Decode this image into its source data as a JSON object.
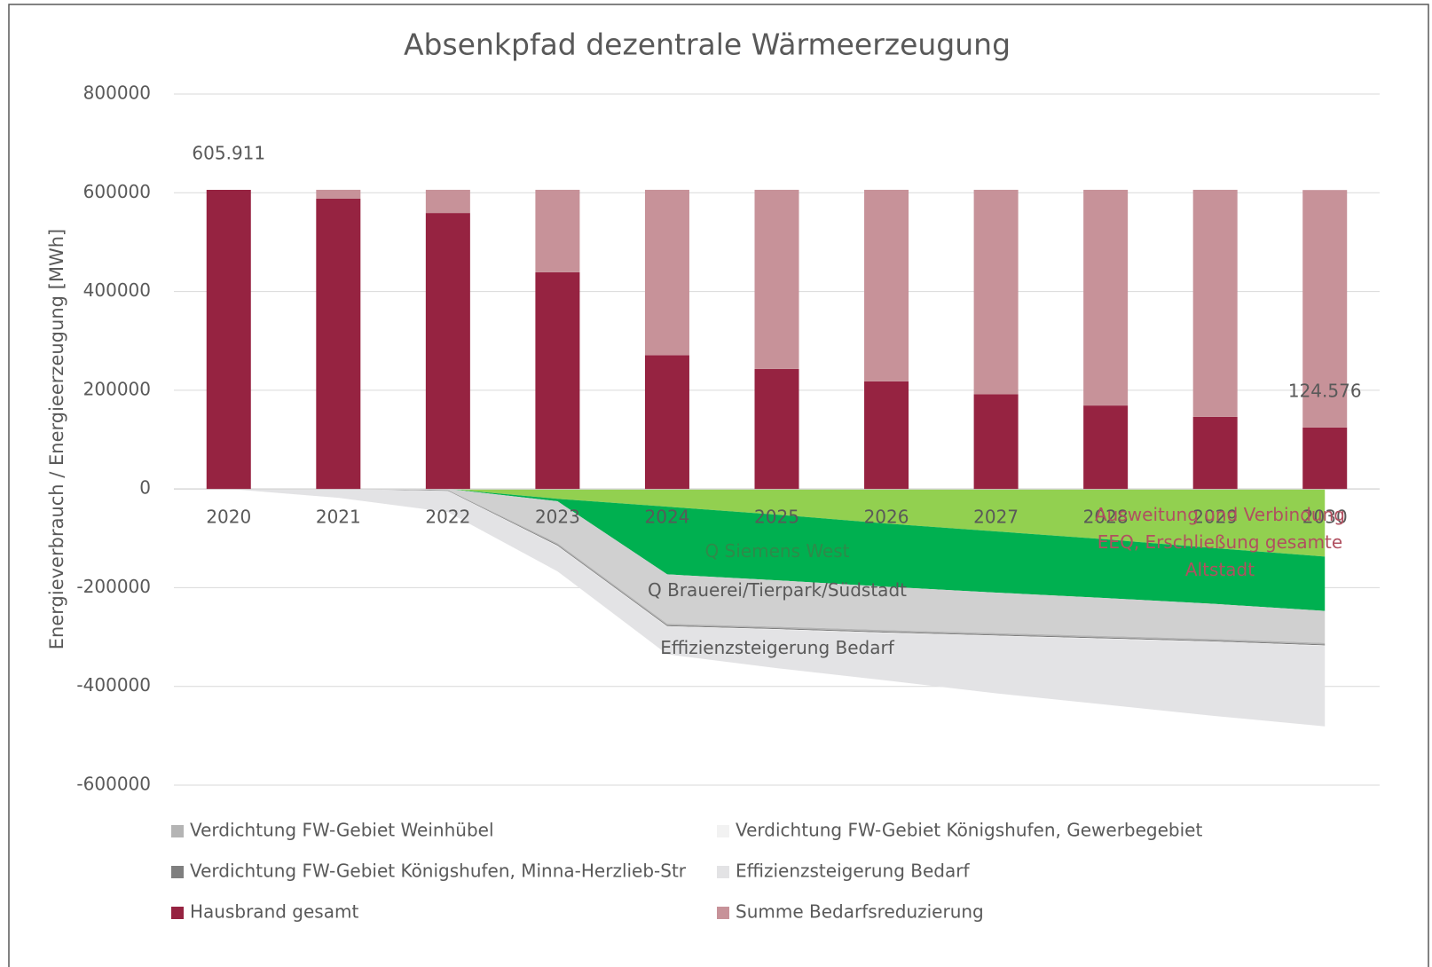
{
  "chart_data": {
    "type": "combo",
    "title": "Absenkpfad dezentrale Wärmeerzeugung",
    "y_label": "Energieverbrauch / Energieerzeugung [MWh]",
    "categories": [
      "2020",
      "2021",
      "2022",
      "2023",
      "2024",
      "2025",
      "2026",
      "2027",
      "2028",
      "2029",
      "2030"
    ],
    "ylim": [
      -600000,
      800000
    ],
    "yticks": [
      -600000,
      -400000,
      -200000,
      0,
      200000,
      400000,
      600000,
      800000
    ],
    "grid": true,
    "series": [
      {
        "name": "Verdichtung FW-Gebiet Weinhübel",
        "type": "area",
        "color": "#b4b4b4",
        "values": [
          0,
          0,
          -1000,
          -3000,
          -3000,
          -3000,
          -3000,
          -3000,
          -3000,
          -3000,
          -3000
        ]
      },
      {
        "name": "Verdichtung FW-Gebiet Königshufen, Gewerbegebiet",
        "type": "area",
        "color": "#f2f2f2",
        "values": [
          0,
          0,
          0,
          -1000,
          -1000,
          -1000,
          -1000,
          -1000,
          -1000,
          -1000,
          -1000
        ]
      },
      {
        "name": "Verdichtung FW-Gebiet Königshufen, Minna-Herzlieb-Str",
        "type": "area",
        "color": "#7f7f7f",
        "values": [
          0,
          0,
          -1000,
          -2000,
          -2000,
          -2000,
          -2000,
          -2000,
          -2000,
          -2000,
          -2000
        ]
      },
      {
        "name": "Effizienzsteigerung Bedarf",
        "type": "area",
        "color": "#e3e3e5",
        "values": [
          0,
          -18000,
          -43000,
          -51000,
          -56000,
          -78000,
          -96000,
          -116000,
          -133000,
          -150000,
          -163000
        ]
      },
      {
        "name": "Hausbrand gesamt",
        "type": "bar",
        "color": "#962341",
        "values": [
          605911,
          588000,
          559000,
          439000,
          271000,
          243000,
          218000,
          192000,
          169000,
          146000,
          124576
        ],
        "value_labels": [
          "605.911",
          null,
          null,
          null,
          null,
          null,
          null,
          null,
          null,
          null,
          "124.576"
        ]
      },
      {
        "name": "Summe Bedarfsreduzierung",
        "type": "bar",
        "color": "#c79299",
        "values": [
          0,
          18000,
          47000,
          167000,
          335000,
          363000,
          388000,
          414000,
          437000,
          460000,
          481000
        ]
      },
      {
        "name": "Ausweitung und Verbindung EEQ, Erschließung gesamte Altstadt",
        "type": "area",
        "color": "#92d050",
        "in_legend": false,
        "values": [
          0,
          0,
          0,
          -20000,
          -36000,
          -52000,
          -70000,
          -86000,
          -102000,
          -120000,
          -137000
        ]
      },
      {
        "name": "Q Siemens West",
        "type": "area",
        "color": "#00b050",
        "in_legend": false,
        "values": [
          0,
          0,
          0,
          -5000,
          -137000,
          -133000,
          -128000,
          -124000,
          -119000,
          -113000,
          -110000
        ]
      },
      {
        "name": "Q Brauerei/Tierpark/Südstadt",
        "type": "area",
        "color": "#d0d0d0",
        "in_legend": false,
        "values": [
          0,
          0,
          -2000,
          -85000,
          -100000,
          -94000,
          -88000,
          -82000,
          -77000,
          -71000,
          -65000
        ]
      }
    ]
  }
}
